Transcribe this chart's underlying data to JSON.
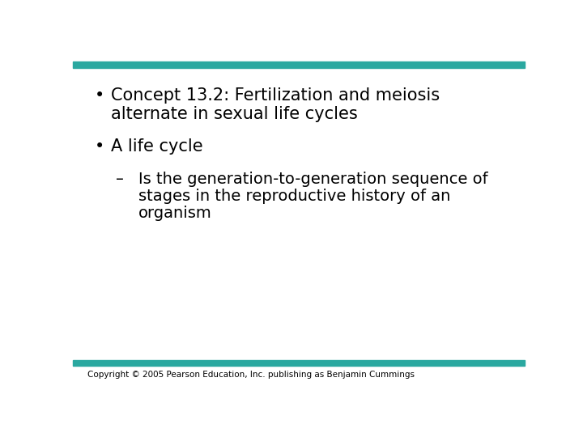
{
  "background_color": "#ffffff",
  "top_bar_color": "#2aa8a0",
  "bottom_bar_color": "#2aa8a0",
  "bullet1_line1": "Concept 13.2: Fertilization and meiosis",
  "bullet1_line2": "alternate in sexual life cycles",
  "bullet2_text": "A life cycle",
  "dash_line1": "Is the generation-to-generation sequence of",
  "dash_line2": "stages in the reproductive history of an",
  "dash_line3": "organism",
  "copyright_text": "Copyright © 2005 Pearson Education, Inc. publishing as Benjamin Cummings",
  "text_color": "#000000"
}
